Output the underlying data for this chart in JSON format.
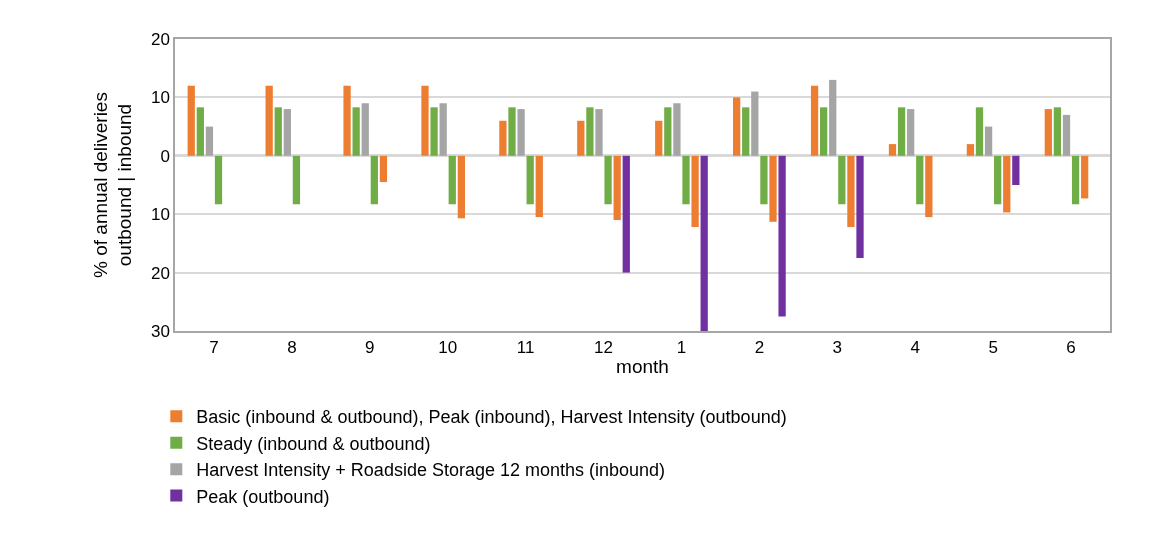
{
  "chart_data": {
    "type": "bar",
    "xlabel": "month",
    "ylabel": "% of annual deliveries\noutbound | inbound",
    "categories": [
      "7",
      "8",
      "9",
      "10",
      "11",
      "12",
      "1",
      "2",
      "3",
      "4",
      "5",
      "6"
    ],
    "series": [
      {
        "name": "Basic (inbound & outbound), Peak (inbound), Harvest Intensity (outbound)",
        "color": "#ed7d31",
        "values": [
          12,
          12,
          12,
          12,
          6,
          6,
          6,
          10,
          12,
          2,
          2,
          8
        ]
      },
      {
        "name": "Steady (inbound & outbound)",
        "color": "#70ad47",
        "values": [
          8.3,
          8.3,
          8.3,
          8.3,
          8.3,
          8.3,
          8.3,
          8.3,
          8.3,
          8.3,
          8.3,
          8.3
        ]
      },
      {
        "name": "Harvest Intensity + Roadside Storage 12 months (inbound)",
        "color": "#a5a5a5",
        "values": [
          5,
          8,
          9,
          9,
          8,
          8,
          9,
          11,
          13,
          8,
          5,
          7
        ]
      },
      {
        "color": "#70ad47",
        "values": [
          -8.3,
          -8.3,
          -8.3,
          -8.3,
          -8.3,
          -8.3,
          -8.3,
          -8.3,
          -8.3,
          -8.3,
          -8.3,
          -8.3
        ]
      },
      {
        "color": "#ed7d31",
        "values": [
          null,
          null,
          -4.5,
          -10.7,
          -10.5,
          -11.0,
          -12.2,
          -11.3,
          -12.2,
          -10.5,
          -9.7,
          -7.3
        ]
      },
      {
        "name": "Peak (outbound)",
        "color": "#7030a0",
        "values": [
          null,
          null,
          null,
          null,
          null,
          -20,
          -30,
          -27.5,
          -17.5,
          null,
          -5,
          null
        ]
      }
    ],
    "ylim": [
      -30,
      20
    ],
    "yticks": [
      20,
      10,
      0,
      {
        "value": -10,
        "label": "10"
      },
      {
        "value": -20,
        "label": "20"
      },
      {
        "value": -30,
        "label": "30"
      }
    ],
    "grid": "y",
    "legend": "bottom"
  }
}
